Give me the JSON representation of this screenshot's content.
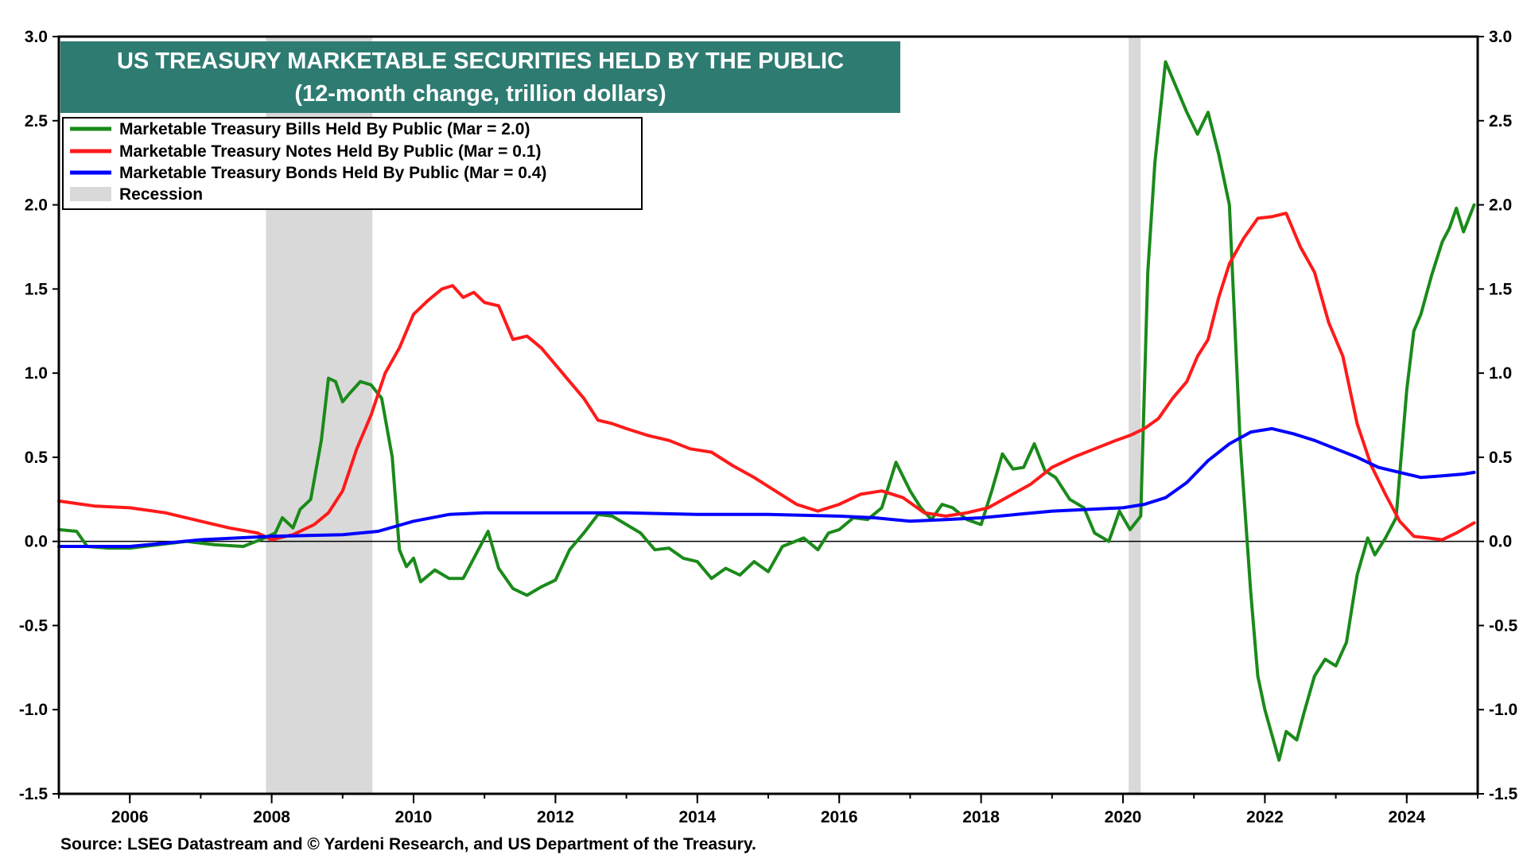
{
  "chart_data": {
    "type": "line",
    "title": "US TREASURY MARKETABLE SECURITIES HELD BY THE PUBLIC",
    "subtitle": "(12-month change, trillion dollars)",
    "source": "Source: LSEG Datastream and © Yardeni Research, and US Department of the Treasury.",
    "xlim": [
      2005.0,
      2025.0
    ],
    "ylim": [
      -1.5,
      3.0
    ],
    "y_ticks": [
      3.0,
      2.5,
      2.0,
      1.5,
      1.0,
      0.5,
      0.0,
      -0.5,
      -1.0,
      -1.5
    ],
    "y_tick_labels": [
      "3.0",
      "2.5",
      "2.0",
      "1.5",
      "1.0",
      "0.5",
      "0.0",
      "-0.5",
      "-1.0",
      "-1.5"
    ],
    "x_ticks": [
      2006,
      2008,
      2010,
      2012,
      2014,
      2016,
      2018,
      2020,
      2022,
      2024
    ],
    "x_tick_labels": [
      "2006",
      "2008",
      "2010",
      "2012",
      "2014",
      "2016",
      "2018",
      "2020",
      "2022",
      "2024"
    ],
    "grid": false,
    "legend_position": "top-left",
    "recessions": [
      {
        "start": 2007.92,
        "end": 2009.42
      },
      {
        "start": 2020.08,
        "end": 2020.25
      }
    ],
    "recession_label": "Recession",
    "recession_color": "#d9d9d9",
    "title_bg_color": "#2e7b72",
    "series": [
      {
        "name": "Marketable Treasury Bills Held By Public (Mar = 2.0)",
        "color": "#1a8a1a",
        "points": [
          [
            2005.0,
            0.07
          ],
          [
            2005.25,
            0.06
          ],
          [
            2005.4,
            -0.03
          ],
          [
            2005.7,
            -0.04
          ],
          [
            2006.0,
            -0.04
          ],
          [
            2006.4,
            -0.02
          ],
          [
            2006.8,
            0.0
          ],
          [
            2007.2,
            -0.02
          ],
          [
            2007.6,
            -0.03
          ],
          [
            2007.9,
            0.02
          ],
          [
            2008.05,
            0.05
          ],
          [
            2008.15,
            0.14
          ],
          [
            2008.3,
            0.08
          ],
          [
            2008.4,
            0.19
          ],
          [
            2008.55,
            0.25
          ],
          [
            2008.7,
            0.6
          ],
          [
            2008.8,
            0.97
          ],
          [
            2008.9,
            0.95
          ],
          [
            2009.0,
            0.83
          ],
          [
            2009.1,
            0.88
          ],
          [
            2009.25,
            0.95
          ],
          [
            2009.4,
            0.93
          ],
          [
            2009.55,
            0.85
          ],
          [
            2009.7,
            0.5
          ],
          [
            2009.8,
            -0.05
          ],
          [
            2009.9,
            -0.15
          ],
          [
            2010.0,
            -0.1
          ],
          [
            2010.1,
            -0.24
          ],
          [
            2010.3,
            -0.17
          ],
          [
            2010.5,
            -0.22
          ],
          [
            2010.7,
            -0.22
          ],
          [
            2010.85,
            -0.1
          ],
          [
            2011.05,
            0.06
          ],
          [
            2011.2,
            -0.16
          ],
          [
            2011.4,
            -0.28
          ],
          [
            2011.6,
            -0.32
          ],
          [
            2011.8,
            -0.27
          ],
          [
            2012.0,
            -0.23
          ],
          [
            2012.2,
            -0.05
          ],
          [
            2012.4,
            0.05
          ],
          [
            2012.6,
            0.16
          ],
          [
            2012.8,
            0.15
          ],
          [
            2013.0,
            0.1
          ],
          [
            2013.2,
            0.05
          ],
          [
            2013.4,
            -0.05
          ],
          [
            2013.6,
            -0.04
          ],
          [
            2013.8,
            -0.1
          ],
          [
            2014.0,
            -0.12
          ],
          [
            2014.2,
            -0.22
          ],
          [
            2014.4,
            -0.16
          ],
          [
            2014.6,
            -0.2
          ],
          [
            2014.8,
            -0.12
          ],
          [
            2015.0,
            -0.18
          ],
          [
            2015.2,
            -0.03
          ],
          [
            2015.5,
            0.02
          ],
          [
            2015.7,
            -0.05
          ],
          [
            2015.85,
            0.05
          ],
          [
            2016.0,
            0.07
          ],
          [
            2016.2,
            0.14
          ],
          [
            2016.4,
            0.13
          ],
          [
            2016.6,
            0.2
          ],
          [
            2016.8,
            0.47
          ],
          [
            2017.0,
            0.3
          ],
          [
            2017.15,
            0.2
          ],
          [
            2017.3,
            0.13
          ],
          [
            2017.45,
            0.22
          ],
          [
            2017.6,
            0.2
          ],
          [
            2017.8,
            0.13
          ],
          [
            2018.0,
            0.1
          ],
          [
            2018.15,
            0.3
          ],
          [
            2018.3,
            0.52
          ],
          [
            2018.45,
            0.43
          ],
          [
            2018.6,
            0.44
          ],
          [
            2018.75,
            0.58
          ],
          [
            2018.9,
            0.42
          ],
          [
            2019.05,
            0.38
          ],
          [
            2019.25,
            0.25
          ],
          [
            2019.45,
            0.2
          ],
          [
            2019.6,
            0.05
          ],
          [
            2019.8,
            0.0
          ],
          [
            2019.95,
            0.18
          ],
          [
            2020.1,
            0.07
          ],
          [
            2020.25,
            0.15
          ],
          [
            2020.35,
            1.6
          ],
          [
            2020.45,
            2.25
          ],
          [
            2020.6,
            2.85
          ],
          [
            2020.75,
            2.7
          ],
          [
            2020.9,
            2.55
          ],
          [
            2021.05,
            2.42
          ],
          [
            2021.2,
            2.55
          ],
          [
            2021.35,
            2.3
          ],
          [
            2021.5,
            2.0
          ],
          [
            2021.65,
            0.6
          ],
          [
            2021.8,
            -0.3
          ],
          [
            2021.9,
            -0.8
          ],
          [
            2022.0,
            -1.0
          ],
          [
            2022.1,
            -1.15
          ],
          [
            2022.2,
            -1.3
          ],
          [
            2022.3,
            -1.13
          ],
          [
            2022.45,
            -1.18
          ],
          [
            2022.55,
            -1.02
          ],
          [
            2022.7,
            -0.8
          ],
          [
            2022.85,
            -0.7
          ],
          [
            2023.0,
            -0.74
          ],
          [
            2023.15,
            -0.6
          ],
          [
            2023.3,
            -0.2
          ],
          [
            2023.45,
            0.02
          ],
          [
            2023.55,
            -0.08
          ],
          [
            2023.7,
            0.02
          ],
          [
            2023.85,
            0.14
          ],
          [
            2024.0,
            0.9
          ],
          [
            2024.1,
            1.25
          ],
          [
            2024.2,
            1.35
          ],
          [
            2024.35,
            1.58
          ],
          [
            2024.5,
            1.78
          ],
          [
            2024.6,
            1.86
          ],
          [
            2024.7,
            1.98
          ],
          [
            2024.8,
            1.84
          ],
          [
            2024.95,
            2.0
          ]
        ]
      },
      {
        "name": "Marketable Treasury Notes Held By Public (Mar = 0.1)",
        "color": "#ff1a1a",
        "points": [
          [
            2005.0,
            0.24
          ],
          [
            2005.5,
            0.21
          ],
          [
            2006.0,
            0.2
          ],
          [
            2006.5,
            0.17
          ],
          [
            2007.0,
            0.12
          ],
          [
            2007.4,
            0.08
          ],
          [
            2007.8,
            0.05
          ],
          [
            2008.0,
            0.01
          ],
          [
            2008.3,
            0.04
          ],
          [
            2008.6,
            0.1
          ],
          [
            2008.8,
            0.17
          ],
          [
            2009.0,
            0.3
          ],
          [
            2009.2,
            0.55
          ],
          [
            2009.4,
            0.75
          ],
          [
            2009.6,
            1.0
          ],
          [
            2009.8,
            1.15
          ],
          [
            2010.0,
            1.35
          ],
          [
            2010.2,
            1.43
          ],
          [
            2010.4,
            1.5
          ],
          [
            2010.55,
            1.52
          ],
          [
            2010.7,
            1.45
          ],
          [
            2010.85,
            1.48
          ],
          [
            2011.0,
            1.42
          ],
          [
            2011.2,
            1.4
          ],
          [
            2011.4,
            1.2
          ],
          [
            2011.6,
            1.22
          ],
          [
            2011.8,
            1.15
          ],
          [
            2012.0,
            1.05
          ],
          [
            2012.2,
            0.95
          ],
          [
            2012.4,
            0.85
          ],
          [
            2012.6,
            0.72
          ],
          [
            2012.8,
            0.7
          ],
          [
            2013.0,
            0.67
          ],
          [
            2013.3,
            0.63
          ],
          [
            2013.6,
            0.6
          ],
          [
            2013.9,
            0.55
          ],
          [
            2014.2,
            0.53
          ],
          [
            2014.5,
            0.45
          ],
          [
            2014.8,
            0.38
          ],
          [
            2015.1,
            0.3
          ],
          [
            2015.4,
            0.22
          ],
          [
            2015.7,
            0.18
          ],
          [
            2016.0,
            0.22
          ],
          [
            2016.3,
            0.28
          ],
          [
            2016.6,
            0.3
          ],
          [
            2016.9,
            0.26
          ],
          [
            2017.2,
            0.17
          ],
          [
            2017.5,
            0.15
          ],
          [
            2017.8,
            0.17
          ],
          [
            2018.1,
            0.2
          ],
          [
            2018.4,
            0.27
          ],
          [
            2018.7,
            0.34
          ],
          [
            2019.0,
            0.44
          ],
          [
            2019.3,
            0.5
          ],
          [
            2019.6,
            0.55
          ],
          [
            2019.9,
            0.6
          ],
          [
            2020.1,
            0.63
          ],
          [
            2020.3,
            0.67
          ],
          [
            2020.5,
            0.73
          ],
          [
            2020.7,
            0.85
          ],
          [
            2020.9,
            0.95
          ],
          [
            2021.05,
            1.1
          ],
          [
            2021.2,
            1.2
          ],
          [
            2021.35,
            1.45
          ],
          [
            2021.5,
            1.65
          ],
          [
            2021.7,
            1.8
          ],
          [
            2021.9,
            1.92
          ],
          [
            2022.1,
            1.93
          ],
          [
            2022.3,
            1.95
          ],
          [
            2022.5,
            1.75
          ],
          [
            2022.7,
            1.6
          ],
          [
            2022.9,
            1.3
          ],
          [
            2023.1,
            1.1
          ],
          [
            2023.3,
            0.7
          ],
          [
            2023.5,
            0.45
          ],
          [
            2023.7,
            0.28
          ],
          [
            2023.9,
            0.12
          ],
          [
            2024.1,
            0.03
          ],
          [
            2024.3,
            0.02
          ],
          [
            2024.5,
            0.01
          ],
          [
            2024.7,
            0.05
          ],
          [
            2024.95,
            0.11
          ]
        ]
      },
      {
        "name": "Marketable Treasury Bonds Held By Public (Mar = 0.4)",
        "color": "#0000ff",
        "points": [
          [
            2005.0,
            -0.03
          ],
          [
            2006.0,
            -0.03
          ],
          [
            2007.0,
            0.01
          ],
          [
            2008.0,
            0.03
          ],
          [
            2009.0,
            0.04
          ],
          [
            2009.5,
            0.06
          ],
          [
            2010.0,
            0.12
          ],
          [
            2010.5,
            0.16
          ],
          [
            2011.0,
            0.17
          ],
          [
            2012.0,
            0.17
          ],
          [
            2013.0,
            0.17
          ],
          [
            2014.0,
            0.16
          ],
          [
            2015.0,
            0.16
          ],
          [
            2016.0,
            0.15
          ],
          [
            2016.5,
            0.14
          ],
          [
            2017.0,
            0.12
          ],
          [
            2017.5,
            0.13
          ],
          [
            2018.0,
            0.14
          ],
          [
            2018.5,
            0.16
          ],
          [
            2019.0,
            0.18
          ],
          [
            2019.5,
            0.19
          ],
          [
            2020.0,
            0.2
          ],
          [
            2020.3,
            0.22
          ],
          [
            2020.6,
            0.26
          ],
          [
            2020.9,
            0.35
          ],
          [
            2021.2,
            0.48
          ],
          [
            2021.5,
            0.58
          ],
          [
            2021.8,
            0.65
          ],
          [
            2022.1,
            0.67
          ],
          [
            2022.4,
            0.64
          ],
          [
            2022.7,
            0.6
          ],
          [
            2023.0,
            0.55
          ],
          [
            2023.3,
            0.5
          ],
          [
            2023.6,
            0.44
          ],
          [
            2023.9,
            0.41
          ],
          [
            2024.2,
            0.38
          ],
          [
            2024.5,
            0.39
          ],
          [
            2024.8,
            0.4
          ],
          [
            2024.95,
            0.41
          ]
        ]
      }
    ]
  }
}
